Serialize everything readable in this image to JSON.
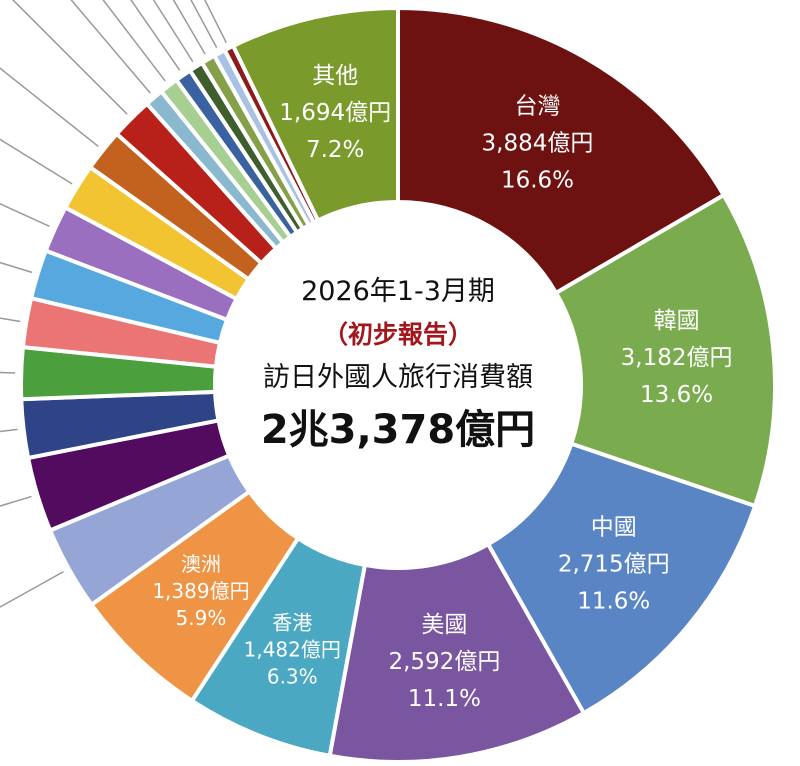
{
  "chart_data": {
    "type": "pie",
    "donut": true,
    "center_text": {
      "period": "2026年1-3月期",
      "note": "（初步報告）",
      "title": "訪日外國人旅行消費額",
      "total": "2兆3,378億円"
    },
    "center_note_color": "#a3161b",
    "slices": [
      {
        "label": "台灣",
        "amount": "3,884億円",
        "percent_text": "16.6%",
        "value": 16.6,
        "color": "#6e1111"
      },
      {
        "label": "韓國",
        "amount": "3,182億円",
        "percent_text": "13.6%",
        "value": 13.6,
        "color": "#7aab4f"
      },
      {
        "label": "中國",
        "amount": "2,715億円",
        "percent_text": "11.6%",
        "value": 11.6,
        "color": "#5a85c5"
      },
      {
        "label": "美國",
        "amount": "2,592億円",
        "percent_text": "11.1%",
        "value": 11.1,
        "color": "#7a55a0"
      },
      {
        "label": "香港",
        "amount": "1,482億円",
        "percent_text": "6.3%",
        "value": 6.3,
        "color": "#4ba8c3"
      },
      {
        "label": "澳洲",
        "amount": "1,389億円",
        "percent_text": "5.9%",
        "value": 5.9,
        "color": "#ee9444"
      },
      {
        "value": 3.6,
        "color": "#95a5d6"
      },
      {
        "value": 3.2,
        "color": "#520b5e"
      },
      {
        "value": 2.5,
        "color": "#2f4487"
      },
      {
        "value": 2.2,
        "color": "#4b9f3c"
      },
      {
        "value": 2.1,
        "color": "#ea7574"
      },
      {
        "value": 2.1,
        "color": "#58a8e0"
      },
      {
        "value": 2.0,
        "color": "#9a6fc0"
      },
      {
        "value": 2.0,
        "color": "#f2c431"
      },
      {
        "value": 1.8,
        "color": "#c3621f"
      },
      {
        "value": 1.8,
        "color": "#b8201a"
      },
      {
        "value": 0.8,
        "color": "#8ab9cf"
      },
      {
        "value": 0.8,
        "color": "#a7cf92"
      },
      {
        "value": 0.7,
        "color": "#3b62a0"
      },
      {
        "value": 0.6,
        "color": "#3e5e2e"
      },
      {
        "value": 0.6,
        "color": "#86a04a"
      },
      {
        "value": 0.5,
        "color": "#a9c2e3"
      },
      {
        "value": 0.4,
        "color": "#8c1b1b"
      },
      {
        "label": "其他",
        "amount": "1,694億円",
        "percent_text": "7.2%",
        "value": 7.2,
        "color": "#7a9a2c"
      }
    ]
  }
}
